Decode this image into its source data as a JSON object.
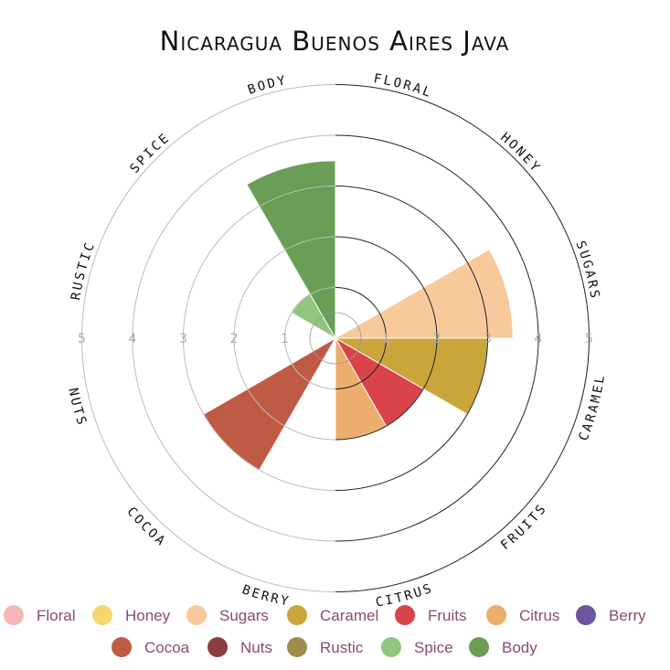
{
  "chart_data": {
    "type": "polar-bar",
    "title": "Nicaragua Buenos Aires Java",
    "rmax": 5,
    "ticks": [
      "1",
      "2",
      "3",
      "4",
      "5"
    ],
    "categories": [
      "Floral",
      "Honey",
      "Sugars",
      "Caramel",
      "Fruits",
      "Citrus",
      "Berry",
      "Cocoa",
      "Nuts",
      "Rustic",
      "Spice",
      "Body"
    ],
    "axis_labels": [
      "FLORAL",
      "HONEY",
      "SUGARS",
      "CARAMEL",
      "FRUITS",
      "CITRUS",
      "BERRY",
      "COCOA",
      "NUTS",
      "RUSTIC",
      "SPICE",
      "BODY"
    ],
    "values": [
      0,
      0,
      3.5,
      3,
      2,
      2,
      0,
      3,
      0,
      0,
      1,
      3.5
    ],
    "colors": [
      "#f4b6b6",
      "#f5d76e",
      "#f8c99a",
      "#c9a53c",
      "#d9434a",
      "#ecad6d",
      "#6b57a0",
      "#bf5a45",
      "#8b3f40",
      "#9f8b4c",
      "#93c580",
      "#6a9e57"
    ],
    "legend": {
      "placement": "bottom"
    }
  }
}
